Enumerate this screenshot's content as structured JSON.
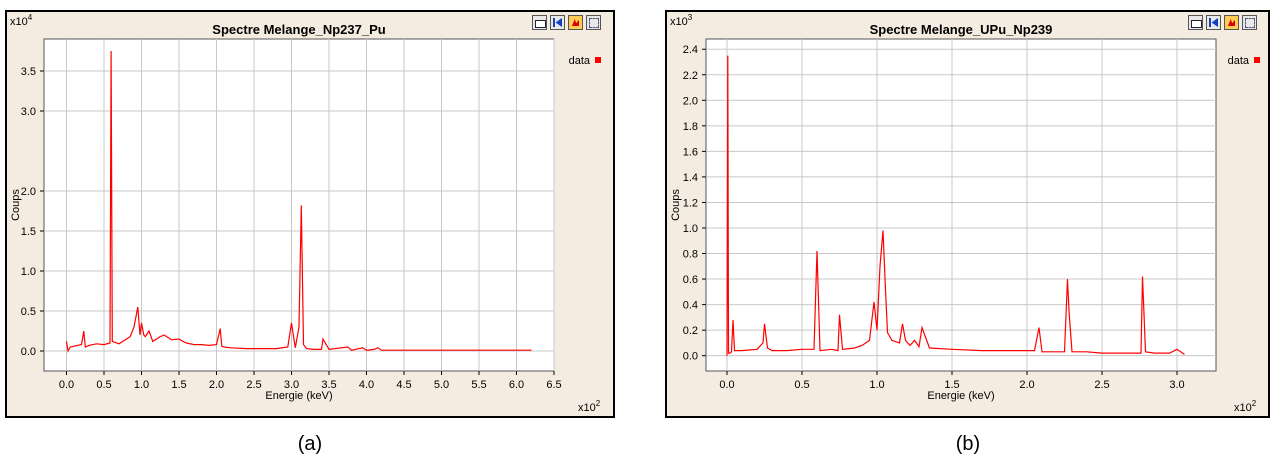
{
  "charts": [
    {
      "title": "Spectre Melange_Np237_Pu",
      "xlabel": "Energie (keV)",
      "ylabel": "Coups",
      "x_multiplier": "x10",
      "x_multiplier_exp": "2",
      "y_multiplier": "x10",
      "y_multiplier_exp": "4",
      "legend_label": "data",
      "caption": "(a)"
    },
    {
      "title": "Spectre Melange_UPu_Np239",
      "xlabel": "Energie (keV)",
      "ylabel": "Coups",
      "x_multiplier": "x10",
      "x_multiplier_exp": "2",
      "y_multiplier": "x10",
      "y_multiplier_exp": "3",
      "legend_label": "data",
      "caption": "(b)"
    }
  ],
  "colors": {
    "series": "#ff0000",
    "grid": "#c8c8c8",
    "panel_bg": "#f5ece1",
    "plot_bg": "#ffffff"
  },
  "chart_data": [
    {
      "type": "line",
      "title": "Spectre Melange_Np237_Pu",
      "xlabel": "Energie (keV)",
      "ylabel": "Coups",
      "x_unit_multiplier": 100,
      "y_unit_multiplier": 10000,
      "xlim": [
        -0.3,
        6.5
      ],
      "ylim": [
        -0.25,
        3.9
      ],
      "xticks": [
        0.0,
        0.5,
        1.0,
        1.5,
        2.0,
        2.5,
        3.0,
        3.5,
        4.0,
        4.5,
        5.0,
        5.5,
        6.0,
        6.5
      ],
      "xtick_labels": [
        "0.0",
        "0.5",
        "1.0",
        "1.5",
        "2.0",
        "2.5",
        "3.0",
        "3.5",
        "4.0",
        "4.5",
        "5.0",
        "5.5",
        "6.0",
        "6.5"
      ],
      "yticks": [
        0.0,
        0.5,
        1.0,
        1.5,
        2.0,
        3.0,
        3.5
      ],
      "ytick_labels": [
        "0.0",
        "0.5",
        "1.0",
        "1.5",
        "2.0",
        "3.0",
        "3.5"
      ],
      "grid": true,
      "legend": "top-right",
      "series": [
        {
          "name": "data",
          "x": [
            0.0,
            0.02,
            0.05,
            0.1,
            0.2,
            0.23,
            0.25,
            0.3,
            0.4,
            0.5,
            0.58,
            0.595,
            0.61,
            0.7,
            0.8,
            0.85,
            0.9,
            0.95,
            0.98,
            1.0,
            1.03,
            1.05,
            1.1,
            1.15,
            1.2,
            1.25,
            1.3,
            1.4,
            1.5,
            1.55,
            1.6,
            1.7,
            1.8,
            1.9,
            2.0,
            2.05,
            2.07,
            2.1,
            2.2,
            2.4,
            2.6,
            2.8,
            2.95,
            3.0,
            3.05,
            3.1,
            3.13,
            3.16,
            3.2,
            3.3,
            3.4,
            3.42,
            3.5,
            3.75,
            3.8,
            3.95,
            4.0,
            4.1,
            4.15,
            4.2,
            4.5,
            5.0,
            5.5,
            6.0,
            6.2
          ],
          "y": [
            0.12,
            0.0,
            0.05,
            0.06,
            0.08,
            0.25,
            0.05,
            0.07,
            0.09,
            0.08,
            0.1,
            3.75,
            0.12,
            0.09,
            0.15,
            0.18,
            0.3,
            0.55,
            0.2,
            0.35,
            0.2,
            0.18,
            0.25,
            0.12,
            0.15,
            0.18,
            0.2,
            0.14,
            0.15,
            0.12,
            0.1,
            0.08,
            0.08,
            0.07,
            0.08,
            0.28,
            0.06,
            0.05,
            0.04,
            0.03,
            0.03,
            0.03,
            0.05,
            0.35,
            0.04,
            0.3,
            1.82,
            0.08,
            0.03,
            0.02,
            0.02,
            0.15,
            0.02,
            0.05,
            0.01,
            0.04,
            0.01,
            0.02,
            0.04,
            0.01,
            0.01,
            0.01,
            0.01,
            0.01,
            0.01
          ]
        }
      ]
    },
    {
      "type": "line",
      "title": "Spectre Melange_UPu_Np239",
      "xlabel": "Energie (keV)",
      "ylabel": "Coups",
      "x_unit_multiplier": 100,
      "y_unit_multiplier": 1000,
      "xlim": [
        -0.14,
        3.26
      ],
      "ylim": [
        -0.12,
        2.48
      ],
      "xticks": [
        0.0,
        0.5,
        1.0,
        1.5,
        2.0,
        2.5,
        3.0
      ],
      "xtick_labels": [
        "0.0",
        "0.5",
        "1.0",
        "1.5",
        "2.0",
        "2.5",
        "3.0"
      ],
      "yticks": [
        0.0,
        0.2,
        0.4,
        0.6,
        0.8,
        1.0,
        1.2,
        1.4,
        1.6,
        1.8,
        2.0,
        2.2,
        2.4
      ],
      "ytick_labels": [
        "0.0",
        "0.2",
        "0.4",
        "0.6",
        "0.8",
        "1.0",
        "1.2",
        "1.4",
        "1.6",
        "1.8",
        "2.0",
        "2.2",
        "2.4"
      ],
      "grid": true,
      "legend": "top-right",
      "series": [
        {
          "name": "data",
          "x": [
            0.0,
            0.005,
            0.01,
            0.02,
            0.03,
            0.04,
            0.05,
            0.1,
            0.2,
            0.24,
            0.25,
            0.27,
            0.3,
            0.4,
            0.5,
            0.58,
            0.6,
            0.62,
            0.7,
            0.74,
            0.75,
            0.77,
            0.85,
            0.9,
            0.95,
            0.98,
            1.0,
            1.02,
            1.04,
            1.055,
            1.07,
            1.1,
            1.15,
            1.17,
            1.19,
            1.22,
            1.25,
            1.28,
            1.3,
            1.35,
            1.5,
            1.7,
            1.9,
            2.05,
            2.08,
            2.1,
            2.15,
            2.2,
            2.25,
            2.27,
            2.28,
            2.3,
            2.4,
            2.5,
            2.6,
            2.7,
            2.76,
            2.77,
            2.79,
            2.85,
            2.9,
            2.95,
            3.0,
            3.05
          ],
          "y": [
            0.0,
            2.35,
            0.02,
            0.02,
            0.03,
            0.28,
            0.04,
            0.04,
            0.05,
            0.1,
            0.25,
            0.06,
            0.04,
            0.04,
            0.05,
            0.05,
            0.82,
            0.04,
            0.05,
            0.04,
            0.32,
            0.05,
            0.06,
            0.08,
            0.12,
            0.42,
            0.2,
            0.7,
            0.98,
            0.55,
            0.18,
            0.12,
            0.1,
            0.25,
            0.12,
            0.08,
            0.12,
            0.07,
            0.22,
            0.06,
            0.05,
            0.04,
            0.04,
            0.04,
            0.22,
            0.03,
            0.03,
            0.03,
            0.03,
            0.6,
            0.35,
            0.03,
            0.03,
            0.02,
            0.02,
            0.02,
            0.02,
            0.62,
            0.03,
            0.02,
            0.02,
            0.02,
            0.05,
            0.01
          ]
        }
      ]
    }
  ]
}
